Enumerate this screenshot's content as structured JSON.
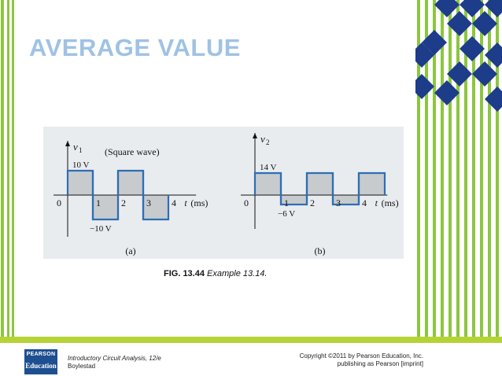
{
  "slide": {
    "title": "AVERAGE VALUE"
  },
  "figure_a": {
    "v_label": "v",
    "v_sub": "1",
    "note": "(Square wave)",
    "pos_level": "10 V",
    "neg_level": "−10 V",
    "t_label": "t",
    "t_unit": "(ms)",
    "ticks": [
      "0",
      "1",
      "2",
      "3",
      "4"
    ],
    "part": "(a)",
    "levels": [
      10,
      -10,
      10,
      -10
    ],
    "segment_ms": 1
  },
  "figure_b": {
    "v_label": "v",
    "v_sub": "2",
    "pos_level": "14 V",
    "neg_level": "−6  V",
    "t_label": "t",
    "t_unit": "(ms)",
    "ticks": [
      "0",
      "1",
      "2",
      "3",
      "4"
    ],
    "part": "(b)",
    "levels": [
      14,
      -6,
      14,
      -6,
      14
    ],
    "segment_ms": 1
  },
  "caption": {
    "number": "FIG. 13.44",
    "text": "Example 13.14."
  },
  "footer": {
    "logo_line1": "PEARSON",
    "logo_line2": "Education",
    "book_line1": "Introductory Circuit Analysis, 12/e",
    "book_line2": "Boylestad",
    "copyright_line1": "Copyright ©2011 by Pearson Education, Inc.",
    "copyright_line2": "publishing as Pearson [imprint]"
  },
  "colors": {
    "accent_green": "#8cc63f",
    "footer_green": "#b5d336",
    "diamond_blue": "#1d3c8a",
    "title_blue": "#9fc2e4",
    "wave_blue": "#2e6eb5",
    "wave_fill": "#c8cbce"
  }
}
